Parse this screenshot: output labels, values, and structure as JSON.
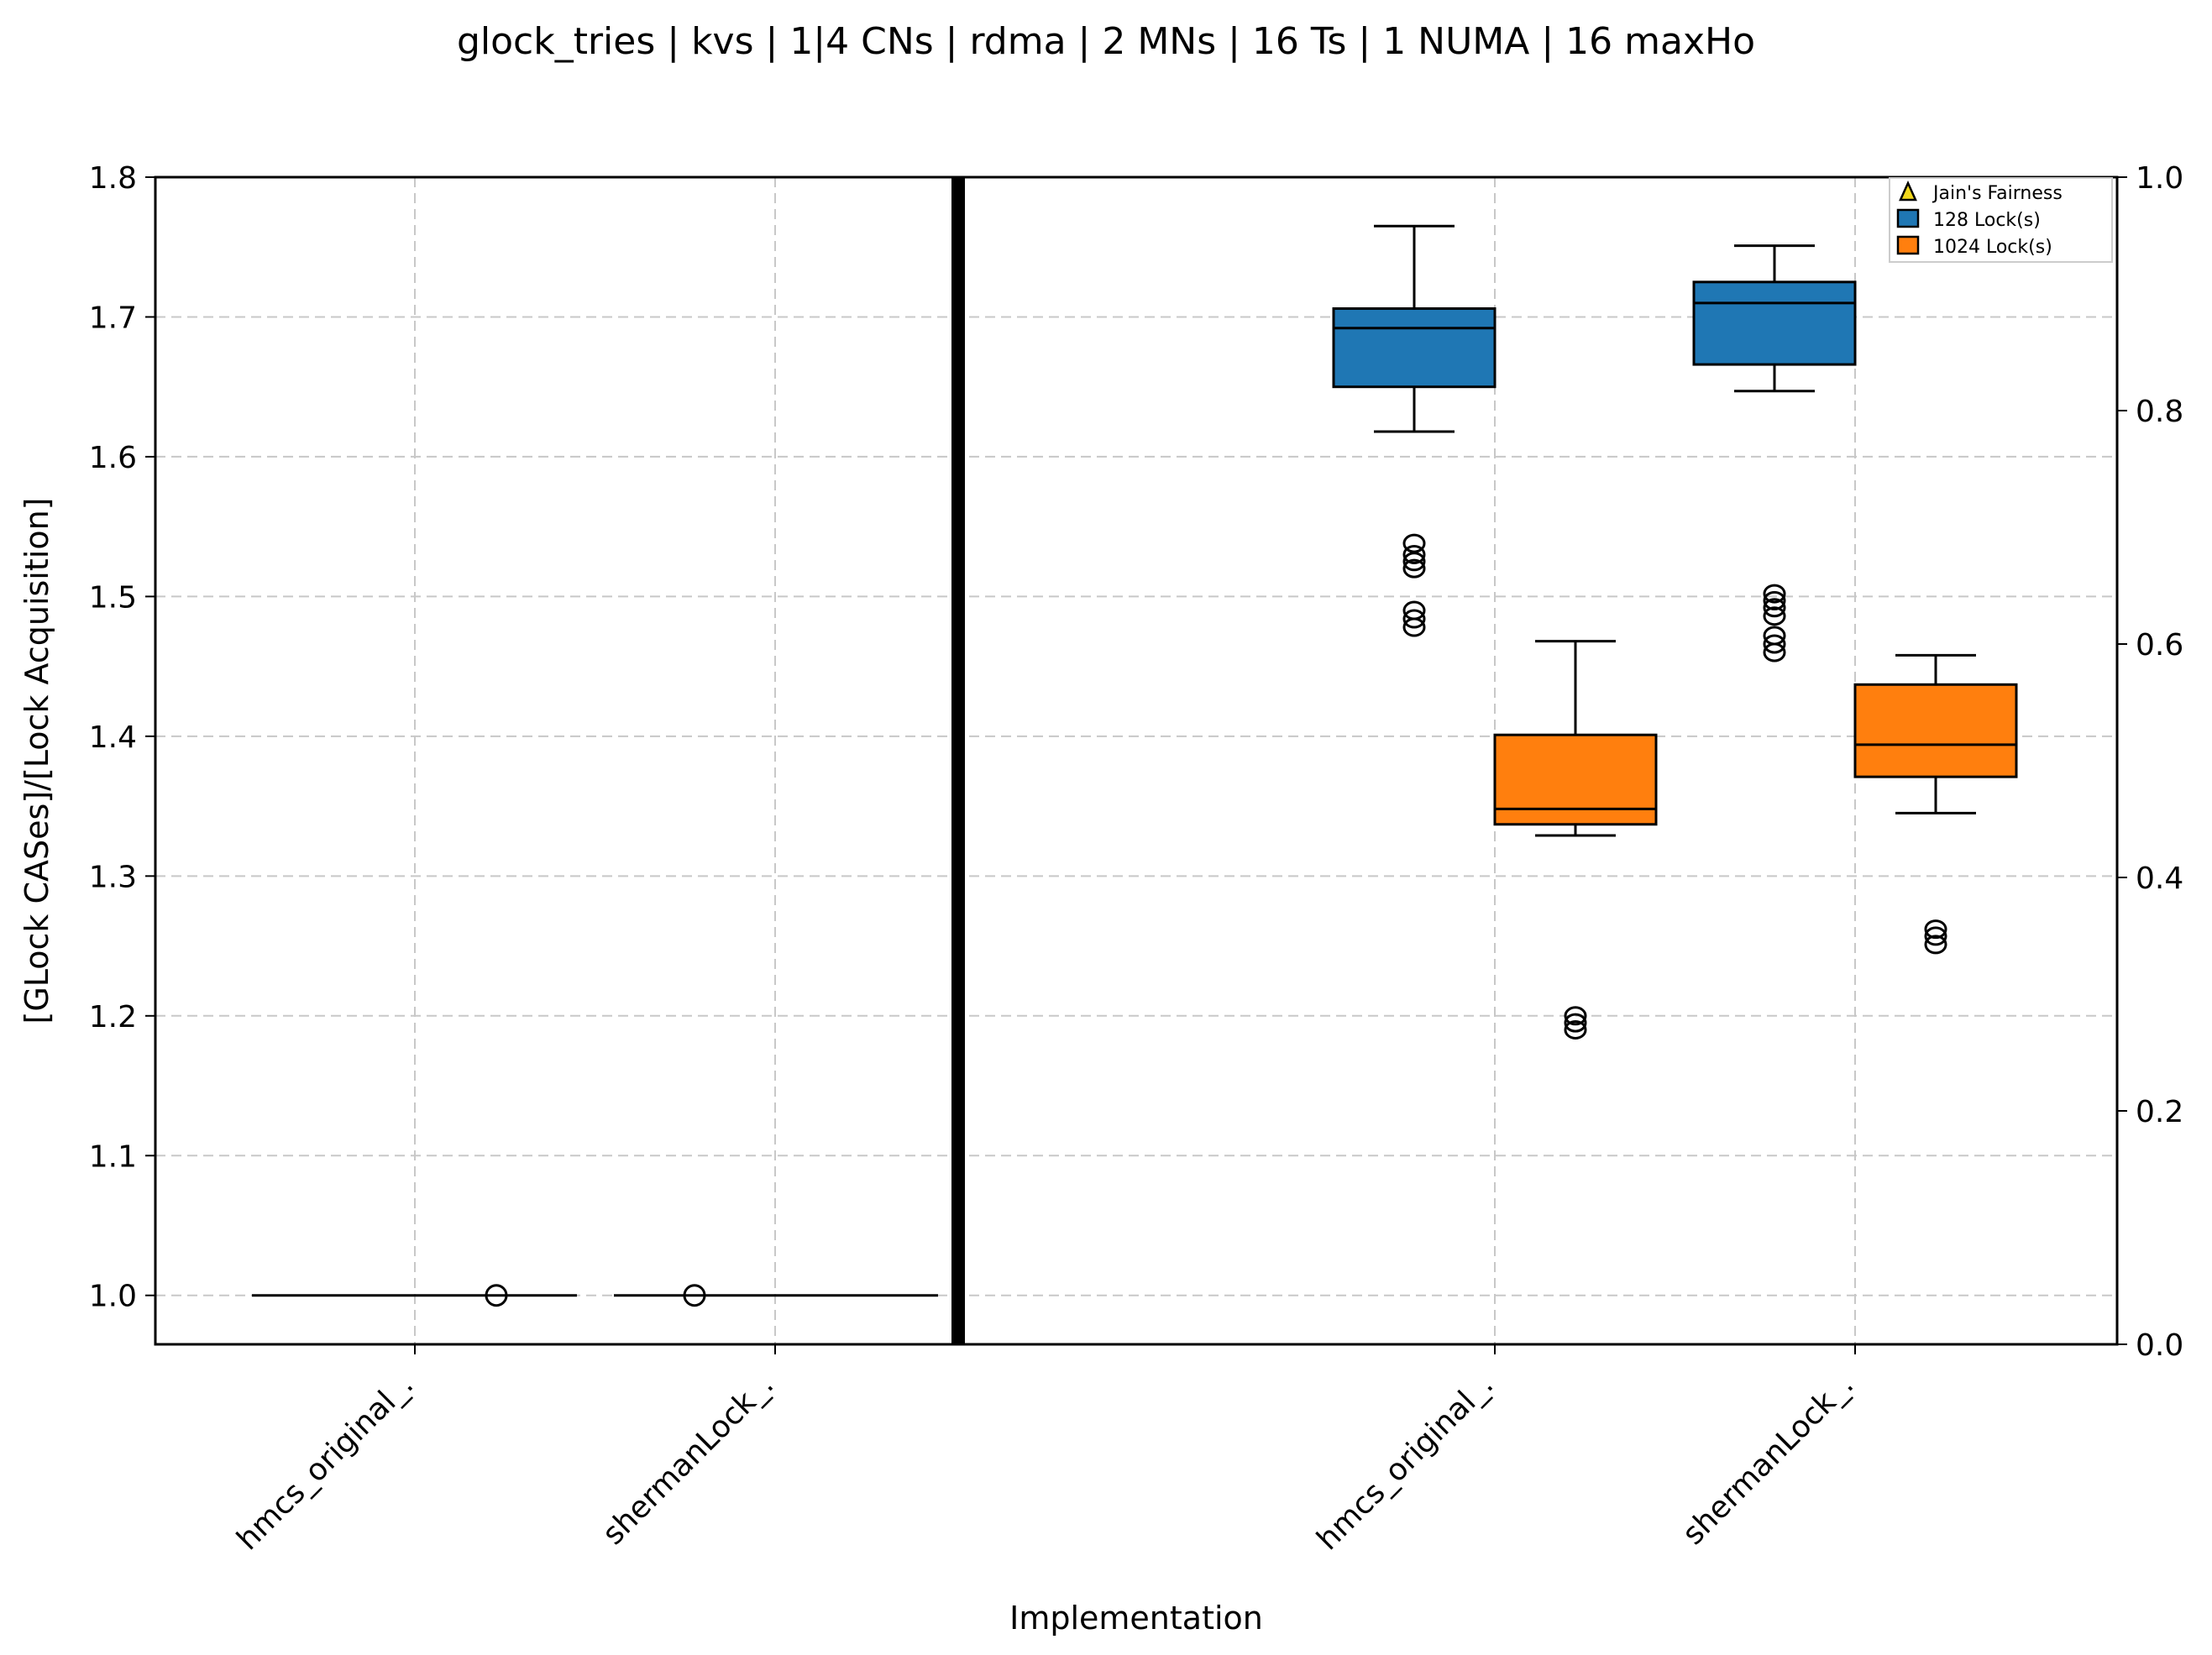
{
  "chart_data": {
    "type": "box",
    "title": "glock_tries | kvs | 1|4 CNs | rdma | 2 MNs | 16 Ts | 1 NUMA | 16 maxHo",
    "xlabel": "Implementation",
    "ylabel": "[GLock CASes]/[Lock Acquisition]",
    "ylim": [
      0.965,
      1.8
    ],
    "yticks": [
      "1.0",
      "1.1",
      "1.2",
      "1.3",
      "1.4",
      "1.5",
      "1.6",
      "1.7",
      "1.8"
    ],
    "y2lim": [
      0.0,
      1.0
    ],
    "y2ticks": [
      "0.0",
      "0.2",
      "0.4",
      "0.6",
      "0.8",
      "1.0"
    ],
    "grid": true,
    "legend_position": "top-right",
    "legend": [
      {
        "label": "Jain's Fairness",
        "marker": "triangle",
        "color": "#f2d81c"
      },
      {
        "label": "128 Lock(s)",
        "marker": "square",
        "color": "#1f77b4"
      },
      {
        "label": "1024 Lock(s)",
        "marker": "square",
        "color": "#ff7f0e"
      }
    ],
    "categories": [
      "hmcs_original_.",
      "shermanLock_.",
      "hmcs_original_.",
      "shermanLock_."
    ],
    "series": [
      {
        "name": "Jain's Fairness",
        "color": "#f2d81c",
        "boxes": [
          {
            "category": 0,
            "whislo": 1.0,
            "q1": 1.0,
            "median": 1.0,
            "q3": 1.0,
            "whishi": 1.0,
            "mean": 1.0
          },
          {
            "category": 1,
            "whislo": 1.0,
            "q1": 1.0,
            "median": 1.0,
            "q3": 1.0,
            "whishi": 1.0,
            "mean": 1.0
          }
        ]
      },
      {
        "name": "128 Lock(s)",
        "color": "#1f77b4",
        "boxes": [
          {
            "category": 2,
            "whislo": 1.618,
            "q1": 1.65,
            "median": 1.692,
            "q3": 1.706,
            "whishi": 1.765,
            "fliers": [
              1.538,
              1.53,
              1.525,
              1.52,
              1.49,
              1.484,
              1.478
            ]
          },
          {
            "category": 3,
            "whislo": 1.647,
            "q1": 1.666,
            "median": 1.71,
            "q3": 1.725,
            "whishi": 1.751,
            "fliers": [
              1.502,
              1.497,
              1.492,
              1.486,
              1.472,
              1.466,
              1.46
            ]
          }
        ]
      },
      {
        "name": "1024 Lock(s)",
        "color": "#ff7f0e",
        "boxes": [
          {
            "category": 2,
            "whislo": 1.329,
            "q1": 1.337,
            "median": 1.348,
            "q3": 1.401,
            "whishi": 1.468,
            "fliers": [
              1.2,
              1.195,
              1.19
            ]
          },
          {
            "category": 3,
            "whislo": 1.345,
            "q1": 1.371,
            "median": 1.394,
            "q3": 1.437,
            "whishi": 1.458,
            "fliers": [
              1.262,
              1.257,
              1.251
            ]
          }
        ]
      }
    ]
  }
}
